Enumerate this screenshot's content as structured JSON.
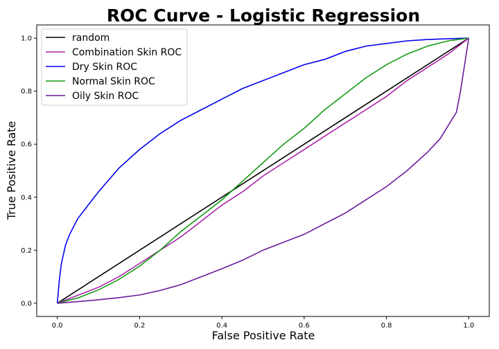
{
  "chart_data": {
    "type": "line",
    "title": "ROC Curve - Logistic Regression",
    "xlabel": "False Positive Rate",
    "ylabel": "True Positive Rate",
    "xlim": [
      -0.05,
      1.05
    ],
    "ylim": [
      -0.05,
      1.05
    ],
    "xticks": [
      "0.0",
      "0.2",
      "0.4",
      "0.6",
      "0.8",
      "1.0"
    ],
    "yticks": [
      "0.0",
      "0.2",
      "0.4",
      "0.6",
      "0.8",
      "1.0"
    ],
    "grid": false,
    "legend_position": "top-left",
    "series": [
      {
        "name": "random",
        "color": "#000000",
        "x": [
          0,
          1
        ],
        "y": [
          0,
          1
        ]
      },
      {
        "name": "Combination Skin ROC",
        "color": "#aa22aa",
        "x": [
          0,
          0.05,
          0.1,
          0.15,
          0.2,
          0.25,
          0.3,
          0.35,
          0.4,
          0.45,
          0.5,
          0.55,
          0.6,
          0.65,
          0.7,
          0.75,
          0.8,
          0.85,
          0.9,
          0.95,
          1.0
        ],
        "y": [
          0,
          0.03,
          0.06,
          0.1,
          0.15,
          0.2,
          0.25,
          0.31,
          0.37,
          0.42,
          0.48,
          0.53,
          0.58,
          0.63,
          0.68,
          0.73,
          0.78,
          0.84,
          0.89,
          0.94,
          1.0
        ]
      },
      {
        "name": "Dry Skin ROC",
        "color": "#0000ee",
        "x": [
          0,
          0.005,
          0.01,
          0.02,
          0.03,
          0.05,
          0.075,
          0.1,
          0.15,
          0.2,
          0.25,
          0.3,
          0.35,
          0.4,
          0.45,
          0.5,
          0.55,
          0.6,
          0.65,
          0.7,
          0.75,
          0.8,
          0.85,
          0.9,
          0.95,
          1.0
        ],
        "y": [
          0,
          0.09,
          0.15,
          0.22,
          0.26,
          0.32,
          0.37,
          0.42,
          0.51,
          0.58,
          0.64,
          0.69,
          0.73,
          0.77,
          0.81,
          0.84,
          0.87,
          0.9,
          0.92,
          0.95,
          0.97,
          0.98,
          0.99,
          0.995,
          0.998,
          1.0
        ]
      },
      {
        "name": "Normal Skin ROC",
        "color": "#119911",
        "x": [
          0,
          0.05,
          0.1,
          0.15,
          0.2,
          0.25,
          0.3,
          0.35,
          0.4,
          0.45,
          0.5,
          0.55,
          0.6,
          0.65,
          0.7,
          0.75,
          0.8,
          0.85,
          0.9,
          0.95,
          1.0
        ],
        "y": [
          0,
          0.02,
          0.05,
          0.09,
          0.14,
          0.2,
          0.27,
          0.33,
          0.39,
          0.46,
          0.53,
          0.6,
          0.66,
          0.73,
          0.79,
          0.85,
          0.9,
          0.94,
          0.97,
          0.99,
          1.0
        ]
      },
      {
        "name": "Oily Skin ROC",
        "color": "#6a1a9a",
        "x": [
          0,
          0.05,
          0.1,
          0.15,
          0.2,
          0.25,
          0.3,
          0.35,
          0.4,
          0.45,
          0.5,
          0.55,
          0.6,
          0.65,
          0.7,
          0.75,
          0.8,
          0.85,
          0.9,
          0.93,
          0.95,
          0.97,
          0.98,
          0.99,
          1.0
        ],
        "y": [
          0,
          0.006,
          0.013,
          0.021,
          0.031,
          0.048,
          0.07,
          0.1,
          0.13,
          0.162,
          0.2,
          0.23,
          0.26,
          0.3,
          0.34,
          0.39,
          0.44,
          0.5,
          0.57,
          0.62,
          0.67,
          0.72,
          0.8,
          0.9,
          1.0
        ]
      }
    ]
  }
}
